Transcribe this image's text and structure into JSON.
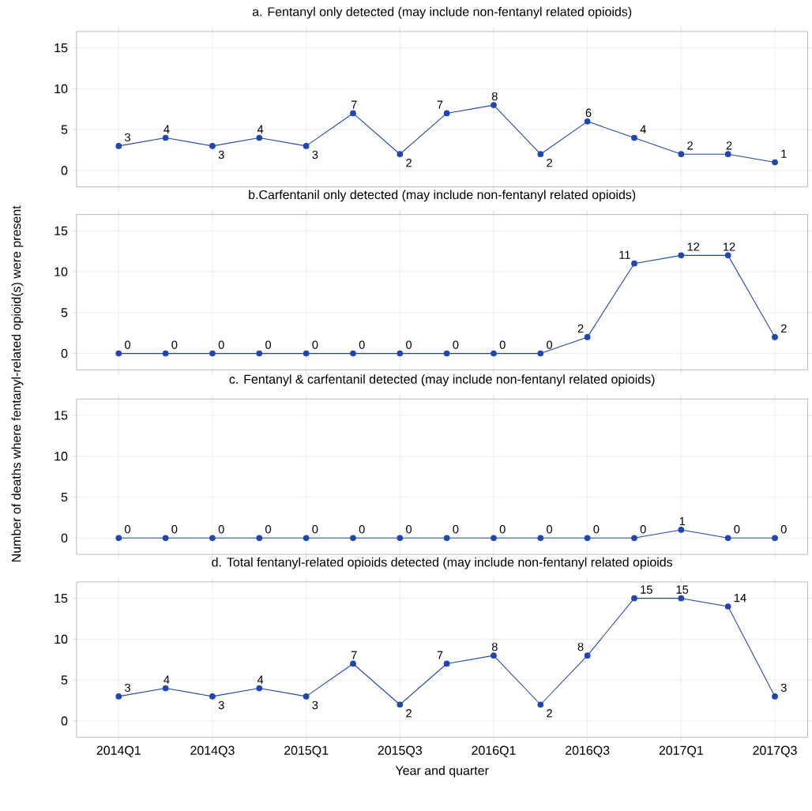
{
  "chart_data": [
    {
      "type": "line",
      "title": "a. Fentanyl only detected (may include non-fentanyl related opioids)",
      "ylabel": "Number of deaths where fentanyl-related opioid(s) were present",
      "categories": [
        null,
        null,
        null,
        null,
        null,
        null,
        null,
        null,
        null,
        null,
        null,
        null,
        null,
        null,
        null
      ],
      "values": [
        3,
        4,
        3,
        4,
        3,
        7,
        2,
        7,
        8,
        2,
        6,
        4,
        2,
        2,
        1
      ],
      "color": "#1f45b0",
      "ylim": [
        -2,
        17
      ],
      "yticks": [
        0,
        5,
        10,
        15
      ],
      "grid": true,
      "marker": "circle",
      "data_labels": true,
      "tick_labels": "y"
    },
    {
      "type": "line",
      "title": "b.Carfentanil only detected (may include non-fentanyl related opioids)",
      "categories": [
        null,
        null,
        null,
        null,
        null,
        null,
        null,
        null,
        null,
        null,
        null,
        null,
        null,
        null,
        null
      ],
      "values": [
        0,
        0,
        0,
        0,
        0,
        0,
        0,
        0,
        0,
        0,
        2,
        11,
        12,
        12,
        2
      ],
      "color": "#1f45b0",
      "ylim": [
        -2,
        17
      ],
      "yticks": [
        0,
        5,
        10,
        15
      ],
      "grid": true,
      "marker": "circle",
      "data_labels": true,
      "tick_labels": "y"
    },
    {
      "type": "line",
      "title": "c. Fentanyl & carfentanil detected (may include non-fentanyl related opioids)",
      "categories": [
        null,
        null,
        null,
        null,
        null,
        null,
        null,
        null,
        null,
        null,
        null,
        null,
        null,
        null,
        null
      ],
      "values": [
        0,
        0,
        0,
        0,
        0,
        0,
        0,
        0,
        0,
        0,
        0,
        0,
        1,
        0,
        0
      ],
      "color": "#1f45b0",
      "ylim": [
        -2,
        17
      ],
      "yticks": [
        0,
        5,
        10,
        15
      ],
      "grid": true,
      "marker": "circle",
      "data_labels": true,
      "tick_labels": "y"
    },
    {
      "type": "line",
      "title": "d. Total fentanyl-related opioids detected (may include non-fentanyl related opioids",
      "xlabel": "Year and quarter",
      "categories": [
        "2014Q1",
        null,
        "2014Q3",
        null,
        "2015Q1",
        null,
        "2015Q3",
        null,
        "2016Q1",
        null,
        "2016Q3",
        null,
        "2017Q1",
        null,
        "2017Q3"
      ],
      "values": [
        3,
        4,
        3,
        4,
        3,
        7,
        2,
        7,
        8,
        2,
        8,
        15,
        15,
        14,
        3
      ],
      "color": "#1f45b0",
      "ylim": [
        -2,
        17
      ],
      "yticks": [
        0,
        5,
        10,
        15
      ],
      "grid": true,
      "marker": "circle",
      "data_labels": true
    }
  ]
}
